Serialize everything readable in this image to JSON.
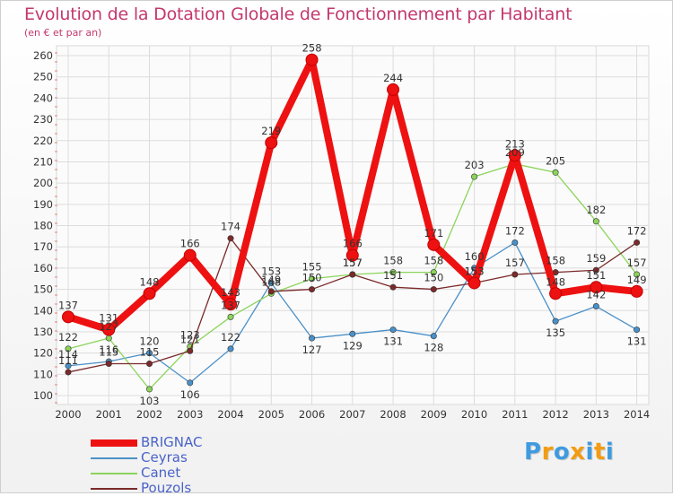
{
  "title": "Evolution de la Dotation Globale de Fonctionnement par Habitant",
  "subtitle": "(en € et par an)",
  "logo_text": "Proxiti",
  "logo_colors": [
    "#3f9be0",
    "#f39c12",
    "#3f9be0",
    "#f39c12",
    "#3f9be0",
    "#f39c12",
    "#3f9be0"
  ],
  "chart_data": {
    "type": "line",
    "title": "Evolution de la Dotation Globale de Fonctionnement par Habitant",
    "subtitle": "(en € et par an)",
    "xlabel": "",
    "ylabel": "",
    "x": [
      "2000",
      "2001",
      "2002",
      "2003",
      "2004",
      "2005",
      "2006",
      "2007",
      "2008",
      "2009",
      "2010",
      "2011",
      "2012",
      "2013",
      "2014"
    ],
    "ylim": [
      100,
      260
    ],
    "yticks": [
      100,
      110,
      120,
      130,
      140,
      150,
      160,
      170,
      180,
      190,
      200,
      210,
      220,
      230,
      240,
      250,
      260
    ],
    "grid": true,
    "legend_position": "bottom-left",
    "series": [
      {
        "name": "BRIGNAC",
        "color": "#ee1111",
        "emphasis": true,
        "values": [
          137,
          131,
          148,
          166,
          143,
          219,
          258,
          166,
          244,
          171,
          153,
          213,
          148,
          151,
          149
        ]
      },
      {
        "name": "Ceyras",
        "color": "#4a90c8",
        "values": [
          114,
          116,
          120,
          106,
          122,
          153,
          127,
          129,
          131,
          128,
          160,
          172,
          135,
          142,
          131
        ]
      },
      {
        "name": "Canet",
        "color": "#8bd45a",
        "values": [
          122,
          127,
          103,
          123,
          137,
          148,
          155,
          157,
          158,
          158,
          203,
          209,
          205,
          182,
          157
        ]
      },
      {
        "name": "Pouzols",
        "color": "#7b2a2a",
        "values": [
          111,
          115,
          115,
          121,
          174,
          149,
          150,
          157,
          151,
          150,
          153,
          157,
          158,
          159,
          172
        ]
      }
    ]
  }
}
